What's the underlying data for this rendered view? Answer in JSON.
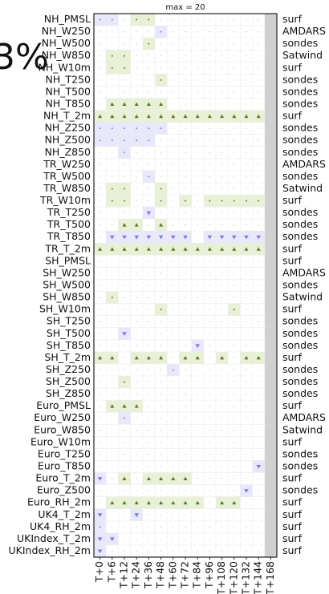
{
  "chart_data": {
    "type": "scorecard",
    "title": "max = 20",
    "annotation": "3%",
    "columns": [
      "T+0",
      "T+6",
      "T+12",
      "T+24",
      "T+36",
      "T+48",
      "T+60",
      "T+72",
      "T+84",
      "T+96",
      "T+108",
      "T+120",
      "T+132",
      "T+144",
      "T+168"
    ],
    "colors": {
      "better_bg": "#e8f0d6",
      "better_mark": "#5b7a2e",
      "worse_bg": "#e8e8fb",
      "worse_mark": "#7b7be0",
      "neutral": "#c8c8c8",
      "missing": "#d0d0d0",
      "grid": "#ececec"
    },
    "rows": [
      {
        "name": "NH_PMSL",
        "source": "surf",
        "values": [
          -1,
          -1,
          0,
          1,
          1,
          0,
          0,
          0,
          0,
          0,
          0,
          0,
          0,
          0,
          null
        ]
      },
      {
        "name": "NH_W250",
        "source": "AMDARS",
        "values": [
          0,
          0,
          0,
          0,
          0,
          -1,
          0,
          0,
          0,
          0,
          0,
          0,
          0,
          0,
          null
        ]
      },
      {
        "name": "NH_W500",
        "source": "sondes",
        "values": [
          0,
          0,
          0,
          0,
          1,
          0,
          0,
          0,
          0,
          0,
          0,
          0,
          0,
          0,
          null
        ]
      },
      {
        "name": "NH_W850",
        "source": "Satwind",
        "values": [
          0,
          1,
          1,
          0,
          0,
          0,
          0,
          0,
          0,
          0,
          0,
          0,
          0,
          0,
          null
        ]
      },
      {
        "name": "NH_W10m",
        "source": "surf",
        "values": [
          0,
          1,
          1,
          0,
          0,
          0,
          0,
          0,
          0,
          0,
          0,
          0,
          0,
          0,
          null
        ]
      },
      {
        "name": "NH_T250",
        "source": "sondes",
        "values": [
          0,
          0,
          0,
          0,
          0,
          1,
          0,
          0,
          0,
          0,
          0,
          0,
          0,
          0,
          null
        ]
      },
      {
        "name": "NH_T500",
        "source": "sondes",
        "values": [
          0,
          0,
          0,
          0,
          0,
          0,
          0,
          0,
          0,
          0,
          0,
          0,
          0,
          0,
          null
        ]
      },
      {
        "name": "NH_T850",
        "source": "sondes",
        "values": [
          0,
          2,
          2,
          2,
          2,
          2,
          0,
          0,
          0,
          0,
          0,
          0,
          0,
          0,
          null
        ]
      },
      {
        "name": "NH_T_2m",
        "source": "surf",
        "values": [
          2,
          2,
          2,
          2,
          2,
          2,
          2,
          2,
          2,
          2,
          2,
          2,
          2,
          2,
          null
        ]
      },
      {
        "name": "NH_Z250",
        "source": "sondes",
        "values": [
          -1,
          -1,
          -1,
          -1,
          -1,
          -1,
          0,
          0,
          0,
          0,
          0,
          0,
          0,
          0,
          null
        ]
      },
      {
        "name": "NH_Z500",
        "source": "sondes",
        "values": [
          -1,
          -1,
          -1,
          -1,
          -1,
          0,
          0,
          0,
          0,
          0,
          0,
          0,
          0,
          0,
          null
        ]
      },
      {
        "name": "NH_Z850",
        "source": "sondes",
        "values": [
          0,
          0,
          -1,
          0,
          0,
          0,
          0,
          0,
          0,
          0,
          0,
          0,
          0,
          0,
          null
        ]
      },
      {
        "name": "TR_W250",
        "source": "AMDARS",
        "values": [
          0,
          0,
          0,
          0,
          0,
          0,
          0,
          0,
          0,
          0,
          0,
          0,
          0,
          0,
          null
        ]
      },
      {
        "name": "TR_W500",
        "source": "sondes",
        "values": [
          0,
          0,
          0,
          0,
          -1,
          0,
          0,
          0,
          0,
          0,
          0,
          0,
          0,
          0,
          null
        ]
      },
      {
        "name": "TR_W850",
        "source": "Satwind",
        "values": [
          0,
          1,
          1,
          0,
          0,
          1,
          0,
          0,
          0,
          0,
          0,
          0,
          0,
          0,
          null
        ]
      },
      {
        "name": "TR_W10m",
        "source": "surf",
        "values": [
          0,
          1,
          1,
          0,
          0,
          1,
          0,
          1,
          0,
          1,
          1,
          1,
          1,
          1,
          null
        ]
      },
      {
        "name": "TR_T250",
        "source": "sondes",
        "values": [
          0,
          0,
          0,
          0,
          -2,
          0,
          0,
          0,
          0,
          0,
          0,
          0,
          0,
          0,
          null
        ]
      },
      {
        "name": "TR_T500",
        "source": "sondes",
        "values": [
          0,
          0,
          2,
          2,
          0,
          2,
          0,
          0,
          0,
          0,
          0,
          0,
          0,
          0,
          null
        ]
      },
      {
        "name": "TR_T850",
        "source": "sondes",
        "values": [
          0,
          -2,
          -2,
          -2,
          -2,
          -2,
          -2,
          -2,
          0,
          -2,
          -2,
          -2,
          -2,
          -2,
          null
        ]
      },
      {
        "name": "TR_T_2m",
        "source": "surf",
        "values": [
          2,
          2,
          2,
          2,
          2,
          2,
          2,
          2,
          2,
          2,
          2,
          2,
          2,
          2,
          null
        ]
      },
      {
        "name": "SH_PMSL",
        "source": "surf",
        "values": [
          0,
          0,
          0,
          0,
          0,
          0,
          0,
          0,
          0,
          0,
          0,
          0,
          0,
          0,
          null
        ]
      },
      {
        "name": "SH_W250",
        "source": "AMDARS",
        "values": [
          0,
          0,
          0,
          0,
          0,
          0,
          0,
          0,
          0,
          0,
          0,
          0,
          0,
          0,
          null
        ]
      },
      {
        "name": "SH_W500",
        "source": "sondes",
        "values": [
          0,
          0,
          0,
          0,
          0,
          0,
          0,
          0,
          0,
          0,
          0,
          0,
          0,
          0,
          null
        ]
      },
      {
        "name": "SH_W850",
        "source": "Satwind",
        "values": [
          0,
          1,
          0,
          0,
          0,
          0,
          0,
          0,
          0,
          0,
          0,
          0,
          0,
          0,
          null
        ]
      },
      {
        "name": "SH_W10m",
        "source": "surf",
        "values": [
          0,
          0,
          0,
          0,
          0,
          1,
          0,
          0,
          0,
          0,
          0,
          1,
          0,
          0,
          null
        ]
      },
      {
        "name": "SH_T250",
        "source": "sondes",
        "values": [
          0,
          0,
          0,
          0,
          0,
          0,
          0,
          0,
          0,
          0,
          0,
          0,
          0,
          0,
          null
        ]
      },
      {
        "name": "SH_T500",
        "source": "sondes",
        "values": [
          0,
          0,
          -2,
          0,
          0,
          0,
          0,
          0,
          0,
          0,
          0,
          0,
          0,
          0,
          null
        ]
      },
      {
        "name": "SH_T850",
        "source": "sondes",
        "values": [
          0,
          0,
          0,
          0,
          0,
          0,
          0,
          0,
          -2,
          0,
          0,
          0,
          0,
          0,
          null
        ]
      },
      {
        "name": "SH_T_2m",
        "source": "surf",
        "values": [
          2,
          2,
          0,
          2,
          2,
          2,
          0,
          2,
          2,
          0,
          2,
          0,
          2,
          2,
          null
        ]
      },
      {
        "name": "SH_Z250",
        "source": "sondes",
        "values": [
          0,
          0,
          0,
          0,
          0,
          0,
          -1,
          0,
          0,
          0,
          0,
          0,
          0,
          0,
          null
        ]
      },
      {
        "name": "SH_Z500",
        "source": "sondes",
        "values": [
          0,
          0,
          1,
          0,
          0,
          0,
          0,
          0,
          0,
          0,
          0,
          0,
          0,
          0,
          null
        ]
      },
      {
        "name": "SH_Z850",
        "source": "sondes",
        "values": [
          0,
          0,
          0,
          0,
          0,
          0,
          0,
          0,
          0,
          0,
          0,
          0,
          0,
          0,
          null
        ]
      },
      {
        "name": "Euro_PMSL",
        "source": "surf",
        "values": [
          0,
          2,
          2,
          2,
          0,
          0,
          0,
          0,
          0,
          0,
          0,
          0,
          0,
          0,
          null
        ]
      },
      {
        "name": "Euro_W250",
        "source": "AMDARS",
        "values": [
          0,
          0,
          -1,
          0,
          0,
          0,
          0,
          0,
          0,
          0,
          0,
          0,
          0,
          0,
          null
        ]
      },
      {
        "name": "Euro_W850",
        "source": "Satwind",
        "values": [
          0,
          0,
          0,
          0,
          0,
          0,
          0,
          0,
          0,
          0,
          0,
          0,
          0,
          0,
          null
        ]
      },
      {
        "name": "Euro_W10m",
        "source": "surf",
        "values": [
          0,
          0,
          0,
          0,
          0,
          0,
          0,
          0,
          0,
          0,
          0,
          0,
          0,
          0,
          null
        ]
      },
      {
        "name": "Euro_T250",
        "source": "sondes",
        "values": [
          0,
          0,
          0,
          0,
          0,
          0,
          0,
          0,
          0,
          0,
          0,
          0,
          0,
          0,
          null
        ]
      },
      {
        "name": "Euro_T850",
        "source": "sondes",
        "values": [
          0,
          0,
          0,
          0,
          0,
          0,
          0,
          0,
          0,
          0,
          0,
          0,
          0,
          -2,
          null
        ]
      },
      {
        "name": "Euro_T_2m",
        "source": "surf",
        "values": [
          -2,
          0,
          2,
          0,
          2,
          2,
          2,
          2,
          0,
          0,
          0,
          0,
          0,
          0,
          null
        ]
      },
      {
        "name": "Euro_Z500",
        "source": "sondes",
        "values": [
          0,
          0,
          0,
          0,
          0,
          0,
          0,
          0,
          0,
          0,
          0,
          0,
          -2,
          0,
          null
        ]
      },
      {
        "name": "Euro_RH_2m",
        "source": "surf",
        "values": [
          0,
          2,
          2,
          2,
          2,
          2,
          2,
          2,
          2,
          0,
          2,
          2,
          0,
          0,
          null
        ]
      },
      {
        "name": "UK4_T_2m",
        "source": "surf",
        "values": [
          -2,
          0,
          0,
          -2,
          0,
          0,
          0,
          0,
          0,
          0,
          0,
          0,
          0,
          0,
          null
        ]
      },
      {
        "name": "UK4_RH_2m",
        "source": "surf",
        "values": [
          -1,
          0,
          0,
          0,
          0,
          0,
          0,
          0,
          0,
          0,
          0,
          0,
          0,
          0,
          null
        ]
      },
      {
        "name": "UKIndex_T_2m",
        "source": "surf",
        "values": [
          -2,
          -2,
          0,
          0,
          0,
          0,
          0,
          0,
          0,
          0,
          0,
          0,
          0,
          0,
          null
        ]
      },
      {
        "name": "UKIndex_RH_2m",
        "source": "surf",
        "values": [
          -2,
          0,
          0,
          0,
          0,
          0,
          0,
          0,
          0,
          0,
          0,
          0,
          0,
          0,
          null
        ]
      }
    ]
  }
}
